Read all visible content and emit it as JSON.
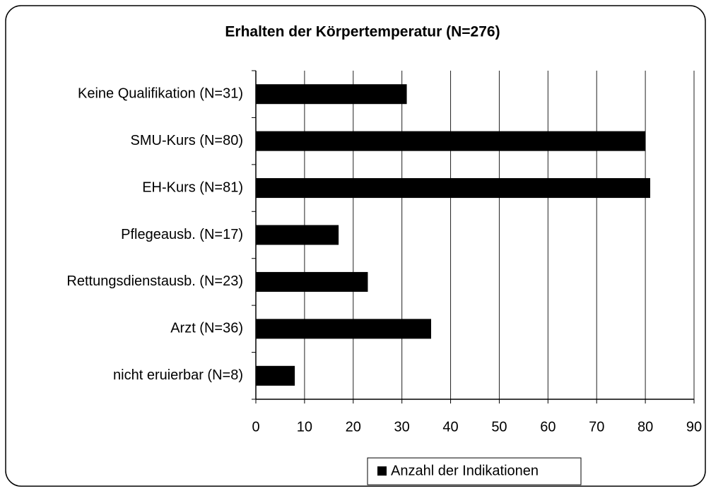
{
  "chart_data": {
    "type": "bar",
    "orientation": "horizontal",
    "title": "Erhalten der Körpertemperatur (N=276)",
    "categories": [
      "Keine Qualifikation (N=31)",
      "SMU-Kurs (N=80)",
      "EH-Kurs (N=81)",
      "Pflegeausb. (N=17)",
      "Rettungsdienstausb. (N=23)",
      "Arzt (N=36)",
      "nicht eruierbar (N=8)"
    ],
    "series": [
      {
        "name": "Anzahl der Indikationen",
        "color": "#000000",
        "values": [
          31,
          80,
          81,
          17,
          23,
          36,
          8
        ]
      }
    ],
    "xlim": [
      0,
      90
    ],
    "xticks": [
      0,
      10,
      20,
      30,
      40,
      50,
      60,
      70,
      80,
      90
    ],
    "grid": true,
    "legend": "bottom"
  }
}
